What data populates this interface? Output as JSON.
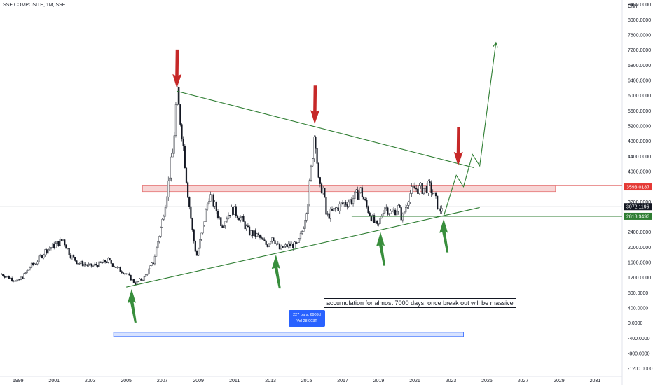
{
  "header": {
    "symbol_title": "SSE COMPOSITE, 1M, SSE",
    "currency": "CNY"
  },
  "colors": {
    "up": "#131722",
    "down": "#131722",
    "trend": "#2e7d32",
    "arrow_red": "#c62828",
    "arrow_green": "#388e3c",
    "resistance_fill": "#f4c7c7",
    "resistance_line": "#e57373",
    "range": "#2962ff",
    "price_tag_dark": "#131722",
    "price_tag_red": "#e53935",
    "price_tag_green": "#2e7d32"
  },
  "price_tags": [
    {
      "id": "resistance",
      "label": "3593.0187",
      "value": 3593.0187,
      "style": "red"
    },
    {
      "id": "current",
      "label": "3072.1196",
      "value": 3072.1196,
      "style": "dark"
    },
    {
      "id": "support",
      "label": "2818.9493",
      "value": 2818.9493,
      "style": "green"
    }
  ],
  "annotation": {
    "text": "accumulation for almost 7000 days, once break out will be massive"
  },
  "range_tag": {
    "line1": "227 bars, 6909d",
    "line2": "Vol 28.003T"
  },
  "chart_data": {
    "type": "candlestick",
    "title": "SSE COMPOSITE, 1M, SSE",
    "x_axis": {
      "ticks": [
        "1999",
        "2001",
        "2003",
        "2005",
        "2007",
        "2009",
        "2011",
        "2013",
        "2015",
        "2017",
        "2019",
        "2021",
        "2023",
        "2025",
        "2027",
        "2029",
        "2031"
      ],
      "range": [
        1998.0,
        2032.5
      ]
    },
    "y_axis": {
      "ticks": [
        "-1200.0000",
        "-800.0000",
        "-400.0000",
        "0.0000",
        "400.0000",
        "800.0000",
        "1200.0000",
        "1600.0000",
        "2000.0000",
        "2400.0000",
        "2800.0000",
        "3200.0000",
        "3600.0000",
        "4000.0000",
        "4400.0000",
        "4800.0000",
        "5200.0000",
        "5600.0000",
        "6000.0000",
        "6400.0000",
        "6800.0000",
        "7200.0000",
        "7600.0000",
        "8000.0000",
        "8400.0000"
      ],
      "range": [
        -1300,
        8450
      ],
      "unit": "CNY"
    },
    "price_path": [
      [
        1998.0,
        1300
      ],
      [
        1998.5,
        1200
      ],
      [
        1999.0,
        1100
      ],
      [
        1999.4,
        1300
      ],
      [
        1999.7,
        1500
      ],
      [
        2000.0,
        1600
      ],
      [
        2000.5,
        1900
      ],
      [
        2001.0,
        2050
      ],
      [
        2001.5,
        2200
      ],
      [
        2001.9,
        1800
      ],
      [
        2002.3,
        1600
      ],
      [
        2002.7,
        1550
      ],
      [
        2003.0,
        1500
      ],
      [
        2003.5,
        1550
      ],
      [
        2004.0,
        1650
      ],
      [
        2004.5,
        1450
      ],
      [
        2005.0,
        1300
      ],
      [
        2005.5,
        1050
      ],
      [
        2006.0,
        1200
      ],
      [
        2006.5,
        1600
      ],
      [
        2007.0,
        2700
      ],
      [
        2007.3,
        3600
      ],
      [
        2007.6,
        4500
      ],
      [
        2007.8,
        6100
      ],
      [
        2008.1,
        5000
      ],
      [
        2008.4,
        3500
      ],
      [
        2008.7,
        2300
      ],
      [
        2008.9,
        1750
      ],
      [
        2009.2,
        2400
      ],
      [
        2009.6,
        3400
      ],
      [
        2009.9,
        3100
      ],
      [
        2010.3,
        2600
      ],
      [
        2010.7,
        2900
      ],
      [
        2010.9,
        3000
      ],
      [
        2011.3,
        2800
      ],
      [
        2011.8,
        2400
      ],
      [
        2012.3,
        2300
      ],
      [
        2012.8,
        2050
      ],
      [
        2013.1,
        2300
      ],
      [
        2013.5,
        1950
      ],
      [
        2014.0,
        2050
      ],
      [
        2014.5,
        2050
      ],
      [
        2014.8,
        2500
      ],
      [
        2015.1,
        3300
      ],
      [
        2015.3,
        4300
      ],
      [
        2015.45,
        5150
      ],
      [
        2015.7,
        3500
      ],
      [
        2015.9,
        3600
      ],
      [
        2016.1,
        2800
      ],
      [
        2016.6,
        3000
      ],
      [
        2017.0,
        3150
      ],
      [
        2017.5,
        3250
      ],
      [
        2018.0,
        3500
      ],
      [
        2018.3,
        3100
      ],
      [
        2018.7,
        2700
      ],
      [
        2018.95,
        2500
      ],
      [
        2019.3,
        3100
      ],
      [
        2019.7,
        2900
      ],
      [
        2020.1,
        3050
      ],
      [
        2020.3,
        2750
      ],
      [
        2020.7,
        3400
      ],
      [
        2021.0,
        3550
      ],
      [
        2021.5,
        3550
      ],
      [
        2021.8,
        3600
      ],
      [
        2022.0,
        3450
      ],
      [
        2022.3,
        3050
      ],
      [
        2022.35,
        2900
      ],
      [
        2022.5,
        3100
      ]
    ],
    "series": [
      {
        "name": "upper trendline",
        "type": "line",
        "points": [
          [
            2007.8,
            6120
          ],
          [
            2024.3,
            4100
          ]
        ]
      },
      {
        "name": "lower trendline",
        "type": "line",
        "points": [
          [
            2005.0,
            950
          ],
          [
            2024.6,
            3050
          ]
        ]
      },
      {
        "name": "support line",
        "type": "line",
        "points": [
          [
            2017.5,
            2819
          ],
          [
            2032.5,
            2819
          ]
        ]
      },
      {
        "name": "projection",
        "type": "line",
        "points": [
          [
            2022.6,
            2820
          ],
          [
            2023.3,
            3900
          ],
          [
            2023.7,
            3600
          ],
          [
            2024.2,
            4450
          ],
          [
            2024.6,
            4150
          ],
          [
            2025.5,
            7400
          ]
        ]
      }
    ],
    "resistance_zone": {
      "from_x": 2005.9,
      "to_x": 2028.8,
      "low": 3470,
      "high": 3640
    },
    "current_price_line": 3072.1196,
    "range_selection": {
      "from_x": 2004.3,
      "to_x": 2023.7,
      "y": -300
    },
    "markers": [
      {
        "type": "arrow-down",
        "color": "red",
        "x": 2007.8,
        "y": 6200
      },
      {
        "type": "arrow-down",
        "color": "red",
        "x": 2015.45,
        "y": 5250
      },
      {
        "type": "arrow-down",
        "color": "red",
        "x": 2023.4,
        "y": 4150
      },
      {
        "type": "arrow-up",
        "color": "green",
        "x": 2005.3,
        "y": 900
      },
      {
        "type": "arrow-up",
        "color": "green",
        "x": 2013.3,
        "y": 1800
      },
      {
        "type": "arrow-up",
        "color": "green",
        "x": 2019.1,
        "y": 2400
      },
      {
        "type": "arrow-up",
        "color": "green",
        "x": 2022.6,
        "y": 2750
      }
    ]
  }
}
